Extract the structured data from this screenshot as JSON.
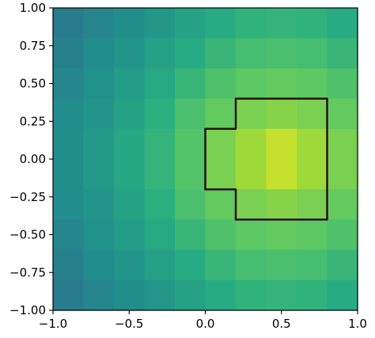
{
  "chart_data": {
    "type": "heatmap",
    "title": "",
    "xlabel": "",
    "ylabel": "",
    "xlim": [
      -1.0,
      1.0
    ],
    "ylim": [
      -1.0,
      1.0
    ],
    "x_ticks": [
      {
        "value": -1.0,
        "label": "−1.0"
      },
      {
        "value": -0.5,
        "label": "−0.5"
      },
      {
        "value": 0.0,
        "label": "0.0"
      },
      {
        "value": 0.5,
        "label": "0.5"
      },
      {
        "value": 1.0,
        "label": "1.0"
      }
    ],
    "y_ticks": [
      {
        "value": 1.0,
        "label": "1.00"
      },
      {
        "value": 0.75,
        "label": "0.75"
      },
      {
        "value": 0.5,
        "label": "0.50"
      },
      {
        "value": 0.25,
        "label": "0.25"
      },
      {
        "value": 0.0,
        "label": "0.00"
      },
      {
        "value": -0.25,
        "label": "−0.25"
      },
      {
        "value": -0.5,
        "label": "−0.50"
      },
      {
        "value": -0.75,
        "label": "−0.75"
      },
      {
        "value": -1.0,
        "label": "−1.00"
      }
    ],
    "grid": false,
    "colormap": "viridis",
    "color_range": [
      0.0,
      1.0
    ],
    "heatmap": {
      "x_edges": [
        -1.0,
        -0.8,
        -0.6,
        -0.4,
        -0.2,
        0.0,
        0.2,
        0.4,
        0.6,
        0.8,
        1.0
      ],
      "y_edges": [
        -1.0,
        -0.8,
        -0.6,
        -0.4,
        -0.2,
        0.0,
        0.2,
        0.4,
        0.6,
        0.8,
        1.0
      ],
      "values_top_to_bottom": [
        [
          0.42,
          0.45,
          0.49,
          0.53,
          0.58,
          0.62,
          0.65,
          0.66,
          0.65,
          0.62
        ],
        [
          0.44,
          0.48,
          0.52,
          0.57,
          0.62,
          0.67,
          0.7,
          0.71,
          0.7,
          0.67
        ],
        [
          0.46,
          0.5,
          0.55,
          0.61,
          0.67,
          0.72,
          0.75,
          0.76,
          0.75,
          0.72
        ],
        [
          0.48,
          0.52,
          0.58,
          0.64,
          0.71,
          0.76,
          0.8,
          0.82,
          0.8,
          0.76
        ],
        [
          0.49,
          0.54,
          0.6,
          0.66,
          0.73,
          0.8,
          0.86,
          0.92,
          0.86,
          0.8
        ],
        [
          0.49,
          0.54,
          0.6,
          0.66,
          0.73,
          0.8,
          0.86,
          0.92,
          0.86,
          0.8
        ],
        [
          0.48,
          0.52,
          0.58,
          0.64,
          0.71,
          0.76,
          0.8,
          0.82,
          0.8,
          0.76
        ],
        [
          0.46,
          0.5,
          0.55,
          0.61,
          0.67,
          0.72,
          0.75,
          0.76,
          0.75,
          0.72
        ],
        [
          0.44,
          0.48,
          0.52,
          0.57,
          0.62,
          0.67,
          0.7,
          0.71,
          0.7,
          0.67
        ],
        [
          0.42,
          0.45,
          0.49,
          0.53,
          0.58,
          0.62,
          0.65,
          0.66,
          0.65,
          0.62
        ]
      ]
    },
    "contour": {
      "color": "#2a0f1c",
      "points": [
        [
          0.2,
          0.4
        ],
        [
          0.8,
          0.4
        ],
        [
          0.8,
          -0.4
        ],
        [
          0.2,
          -0.4
        ],
        [
          0.2,
          -0.2
        ],
        [
          0.0,
          -0.2
        ],
        [
          0.0,
          0.2
        ],
        [
          0.2,
          0.2
        ]
      ]
    }
  }
}
